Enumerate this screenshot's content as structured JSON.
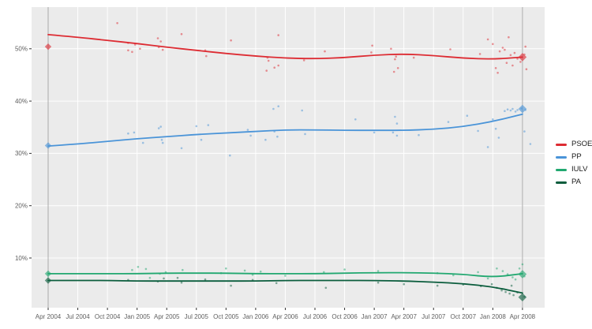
{
  "chart_data": {
    "type": "scatter",
    "title": "",
    "grid": true,
    "legend_position": "right",
    "panel_bg": "#ebebeb",
    "grid_color": "#ffffff",
    "reference_line_color": "#aaaaaa",
    "axis_text_color": "#5f5f5f",
    "x_axis": {
      "tick_labels": [
        "Apr 2004",
        "Jul 2004",
        "Oct 2004",
        "Jan 2005",
        "Apr 2005",
        "Jul 2005",
        "Oct 2005",
        "Jan 2006",
        "Apr 2006",
        "Jul 2006",
        "Oct 2006",
        "Jan 2007",
        "Apr 2007",
        "Jul 2007",
        "Oct 2007",
        "Jan 2008",
        "Apr 2008"
      ],
      "tick_months": [
        0,
        3,
        6,
        9,
        12,
        15,
        18,
        21,
        24,
        27,
        30,
        33,
        36,
        39,
        42,
        45,
        48
      ]
    },
    "y_axis": {
      "tick_labels": [
        "10%",
        "20%",
        "30%",
        "40%",
        "50%"
      ],
      "tick_values": [
        10,
        20,
        30,
        40,
        50
      ],
      "range_pct": [
        0,
        58
      ]
    },
    "reference_lines_months": [
      0,
      48
    ],
    "trend_months": [
      0,
      3,
      6,
      9,
      12,
      15,
      18,
      21,
      24,
      27,
      30,
      33,
      36,
      39,
      42,
      45,
      48
    ],
    "series": [
      {
        "name": "PSOE",
        "color": "#dd2c33",
        "trend_pct": [
          52.7,
          52.2,
          51.6,
          51.0,
          50.3,
          49.7,
          49.1,
          48.6,
          48.2,
          48.1,
          48.3,
          48.8,
          49.0,
          48.7,
          48.2,
          48.0,
          48.4
        ],
        "election_markers": [
          {
            "month": 0,
            "pct": 50.4
          },
          {
            "month": 48,
            "pct": 48.4
          }
        ],
        "poll_points": [
          [
            7,
            54.9
          ],
          [
            8.1,
            51.1
          ],
          [
            8.1,
            49.7
          ],
          [
            8.5,
            49.4
          ],
          [
            8.8,
            50.8
          ],
          [
            9.3,
            50.0
          ],
          [
            11.1,
            52.0
          ],
          [
            11.2,
            50.3
          ],
          [
            11.4,
            51.4
          ],
          [
            11.6,
            49.8
          ],
          [
            13.5,
            52.8
          ],
          [
            15.9,
            49.7
          ],
          [
            16,
            48.6
          ],
          [
            18.5,
            51.6
          ],
          [
            22.1,
            45.8
          ],
          [
            22.2,
            48.3
          ],
          [
            22.3,
            47.7
          ],
          [
            22.9,
            46.4
          ],
          [
            23.3,
            46.8
          ],
          [
            23.3,
            52.6
          ],
          [
            25.9,
            47.8
          ],
          [
            28,
            49.5
          ],
          [
            32.7,
            49.3
          ],
          [
            32.8,
            50.6
          ],
          [
            34.7,
            50.0
          ],
          [
            35,
            45.6
          ],
          [
            35.1,
            48.0
          ],
          [
            35.2,
            48.5
          ],
          [
            35.4,
            46.3
          ],
          [
            37,
            48.3
          ],
          [
            40.7,
            49.9
          ],
          [
            43.7,
            49.0
          ],
          [
            44.5,
            51.8
          ],
          [
            45,
            50.9
          ],
          [
            45.3,
            46.3
          ],
          [
            45.5,
            45.4
          ],
          [
            45.7,
            49.5
          ],
          [
            46,
            50.2
          ],
          [
            46.2,
            49.8
          ],
          [
            46.4,
            47.3
          ],
          [
            46.6,
            52.2
          ],
          [
            46.8,
            48.8
          ],
          [
            47,
            46.8
          ],
          [
            47.2,
            49.2
          ],
          [
            47.5,
            48.1
          ],
          [
            47.8,
            47.5
          ],
          [
            48.2,
            48.9
          ],
          [
            48.4,
            46.1
          ],
          [
            48.3,
            50.4
          ]
        ]
      },
      {
        "name": "PP",
        "color": "#4a94d8",
        "trend_pct": [
          31.4,
          31.8,
          32.3,
          32.8,
          33.2,
          33.6,
          33.9,
          34.2,
          34.5,
          34.5,
          34.4,
          34.4,
          34.4,
          34.6,
          35.1,
          36.1,
          37.5
        ],
        "election_markers": [
          {
            "month": 0,
            "pct": 31.5
          },
          {
            "month": 48,
            "pct": 38.5
          }
        ],
        "poll_points": [
          [
            8.1,
            33.8
          ],
          [
            8.7,
            34.0
          ],
          [
            9.6,
            32.0
          ],
          [
            11.2,
            34.8
          ],
          [
            11.4,
            35.1
          ],
          [
            11.5,
            32.6
          ],
          [
            11.6,
            32.0
          ],
          [
            13.5,
            31.0
          ],
          [
            15,
            35.2
          ],
          [
            15.5,
            32.6
          ],
          [
            16.2,
            35.4
          ],
          [
            18.4,
            29.6
          ],
          [
            20.2,
            34.5
          ],
          [
            20.5,
            33.4
          ],
          [
            22,
            32.6
          ],
          [
            22.8,
            38.5
          ],
          [
            22.9,
            34.2
          ],
          [
            23.2,
            33.2
          ],
          [
            23.3,
            39.0
          ],
          [
            25.7,
            38.2
          ],
          [
            26,
            33.7
          ],
          [
            31.1,
            36.5
          ],
          [
            33,
            34.0
          ],
          [
            34.9,
            34.0
          ],
          [
            35.1,
            37.0
          ],
          [
            35.3,
            35.7
          ],
          [
            35.3,
            33.4
          ],
          [
            37.5,
            33.5
          ],
          [
            40.5,
            36.0
          ],
          [
            42.4,
            37.2
          ],
          [
            43.5,
            34.3
          ],
          [
            44.5,
            31.2
          ],
          [
            45,
            36.5
          ],
          [
            45.3,
            34.7
          ],
          [
            45.6,
            33.0
          ],
          [
            46.2,
            38.1
          ],
          [
            46.5,
            38.4
          ],
          [
            46.8,
            38.2
          ],
          [
            47,
            38.5
          ],
          [
            47.3,
            38.0
          ],
          [
            47.5,
            38.3
          ],
          [
            47.9,
            38.6
          ],
          [
            48.2,
            34.2
          ],
          [
            48.3,
            38.3
          ],
          [
            48.8,
            31.8
          ]
        ]
      },
      {
        "name": "IULV",
        "color": "#21a870",
        "trend_pct": [
          7.0,
          7.0,
          7.0,
          7.0,
          7.1,
          7.1,
          7.1,
          7.0,
          7.0,
          7.0,
          7.1,
          7.2,
          7.2,
          7.1,
          6.9,
          6.3,
          7.0
        ],
        "election_markers": [
          {
            "month": 0,
            "pct": 7.0
          },
          {
            "month": 48,
            "pct": 6.9
          }
        ],
        "poll_points": [
          [
            8.5,
            7.7
          ],
          [
            9.1,
            8.3
          ],
          [
            9.9,
            7.9
          ],
          [
            10.3,
            6.2
          ],
          [
            11.3,
            7.0
          ],
          [
            11.9,
            7.3
          ],
          [
            13.6,
            7.7
          ],
          [
            17.5,
            7.1
          ],
          [
            18,
            8.0
          ],
          [
            19.9,
            7.6
          ],
          [
            20.7,
            6.8
          ],
          [
            21.5,
            7.4
          ],
          [
            24,
            6.6
          ],
          [
            27.9,
            7.3
          ],
          [
            30,
            7.8
          ],
          [
            33.4,
            7.5
          ],
          [
            39.4,
            7.1
          ],
          [
            41,
            6.7
          ],
          [
            43.5,
            7.3
          ],
          [
            44.5,
            6.1
          ],
          [
            45.4,
            8.0
          ],
          [
            46,
            7.5
          ],
          [
            46.5,
            6.9
          ],
          [
            47,
            6.3
          ],
          [
            47.3,
            5.9
          ],
          [
            47.7,
            8.0
          ],
          [
            48,
            8.8
          ],
          [
            48.2,
            6.5
          ]
        ]
      },
      {
        "name": "PA",
        "color": "#0b5d3d",
        "trend_pct": [
          5.7,
          5.7,
          5.7,
          5.6,
          5.6,
          5.6,
          5.6,
          5.6,
          5.7,
          5.7,
          5.7,
          5.7,
          5.6,
          5.4,
          5.1,
          4.5,
          3.3
        ],
        "election_markers": [
          {
            "month": 0,
            "pct": 5.7
          },
          {
            "month": 48,
            "pct": 2.5
          }
        ],
        "poll_points": [
          [
            8.1,
            5.8
          ],
          [
            11.1,
            5.5
          ],
          [
            11.7,
            6.1
          ],
          [
            13.1,
            6.2
          ],
          [
            13.5,
            5.3
          ],
          [
            15.9,
            5.9
          ],
          [
            18.5,
            4.7
          ],
          [
            20.7,
            5.8
          ],
          [
            23.1,
            5.2
          ],
          [
            28.1,
            4.3
          ],
          [
            33.4,
            5.3
          ],
          [
            36,
            5.0
          ],
          [
            39.4,
            4.7
          ],
          [
            42,
            4.9
          ],
          [
            43.8,
            4.6
          ],
          [
            44.9,
            5.0
          ],
          [
            45.4,
            4.3
          ],
          [
            45.9,
            3.8
          ],
          [
            46.3,
            3.5
          ],
          [
            46.7,
            3.2
          ],
          [
            46.9,
            4.7
          ],
          [
            47.1,
            2.9
          ],
          [
            47.5,
            3.4
          ],
          [
            48.2,
            2.6
          ]
        ]
      }
    ]
  }
}
